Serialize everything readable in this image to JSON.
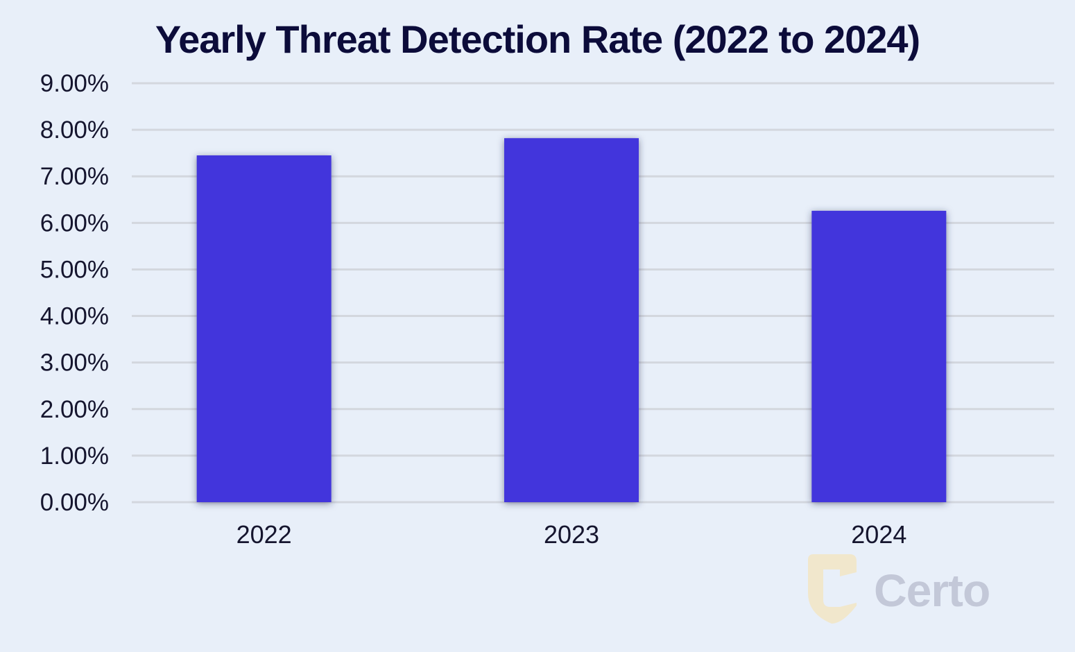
{
  "chart_data": {
    "type": "bar",
    "title": "Yearly Threat Detection Rate (2022 to 2024)",
    "xlabel": "",
    "ylabel": "",
    "categories": [
      "2022",
      "2023",
      "2024"
    ],
    "values": [
      7.45,
      7.82,
      6.26
    ],
    "unit": "%",
    "ylim": [
      0,
      9
    ],
    "yticks": [
      "0.00%",
      "1.00%",
      "2.00%",
      "3.00%",
      "4.00%",
      "5.00%",
      "6.00%",
      "7.00%",
      "8.00%",
      "9.00%"
    ],
    "grid": true,
    "legend": "none",
    "bar_color": "#4236dc"
  },
  "watermark": {
    "text": "Certo",
    "logo_icon": "certo-c-shield-logo"
  }
}
